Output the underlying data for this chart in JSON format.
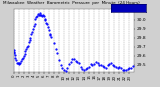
{
  "title": "Milwaukee Weather Barometric Pressure per Minute (24 Hours)",
  "background_color": "#d0d0d0",
  "plot_bg_color": "#ffffff",
  "dot_color": "#0000ff",
  "legend_color": "#0000bb",
  "grid_color": "#999999",
  "ylim": [
    29.42,
    30.12
  ],
  "yticks": [
    29.5,
    29.6,
    29.7,
    29.8,
    29.9,
    30.0,
    30.1
  ],
  "ylabel_fontsize": 3.2,
  "xlabel_fontsize": 2.8,
  "title_fontsize": 3.0,
  "xtick_hours": [
    0,
    1,
    2,
    3,
    4,
    5,
    6,
    7,
    8,
    9,
    10,
    11,
    12,
    13,
    14,
    15,
    16,
    17,
    18,
    19,
    20,
    21,
    22,
    23
  ],
  "data_x": [
    0.0,
    0.08,
    0.17,
    0.25,
    0.33,
    0.5,
    0.67,
    0.83,
    1.0,
    1.17,
    1.33,
    1.5,
    1.67,
    1.83,
    2.0,
    2.17,
    2.33,
    2.5,
    2.67,
    2.83,
    3.0,
    3.17,
    3.33,
    3.5,
    3.67,
    3.83,
    4.0,
    4.17,
    4.33,
    4.5,
    4.67,
    4.83,
    5.0,
    5.17,
    5.33,
    5.5,
    5.67,
    5.83,
    6.0,
    6.17,
    6.33,
    6.5,
    6.67,
    6.83,
    7.0,
    7.17,
    7.33,
    7.5,
    8.0,
    8.33,
    8.67,
    9.0,
    9.33,
    9.67,
    10.0,
    10.33,
    10.67,
    11.0,
    11.33,
    11.67,
    12.0,
    12.33,
    12.67,
    13.0,
    13.33,
    13.67,
    14.0,
    14.33,
    14.67,
    15.0,
    15.33,
    15.67,
    16.0,
    16.33,
    16.67,
    17.0,
    17.33,
    17.67,
    18.0,
    18.33,
    18.67,
    19.0,
    19.33,
    19.67,
    20.0,
    20.33,
    20.67,
    21.0,
    21.33,
    21.67,
    22.0,
    22.33,
    22.67,
    23.0,
    23.33,
    23.67
  ],
  "data_y": [
    29.65,
    29.64,
    29.63,
    29.6,
    29.58,
    29.55,
    29.52,
    29.53,
    29.5,
    29.51,
    29.52,
    29.54,
    29.56,
    29.58,
    29.6,
    29.63,
    29.65,
    29.67,
    29.7,
    29.72,
    29.74,
    29.77,
    29.8,
    29.83,
    29.87,
    29.91,
    29.94,
    29.97,
    30.0,
    30.03,
    30.05,
    30.06,
    30.07,
    30.07,
    30.07,
    30.06,
    30.05,
    30.04,
    30.03,
    30.01,
    29.99,
    29.97,
    29.95,
    29.93,
    29.9,
    29.86,
    29.83,
    29.79,
    29.74,
    29.68,
    29.62,
    29.55,
    29.5,
    29.46,
    29.44,
    29.43,
    29.47,
    29.5,
    29.53,
    29.55,
    29.57,
    29.56,
    29.53,
    29.5,
    29.48,
    29.46,
    29.45,
    29.46,
    29.47,
    29.48,
    29.49,
    29.5,
    29.51,
    29.52,
    29.51,
    29.5,
    29.49,
    29.48,
    29.47,
    29.48,
    29.49,
    29.5,
    29.51,
    29.5,
    29.49,
    29.48,
    29.47,
    29.46,
    29.45,
    29.44,
    29.43,
    29.44,
    29.45,
    29.46,
    29.47,
    29.48
  ]
}
